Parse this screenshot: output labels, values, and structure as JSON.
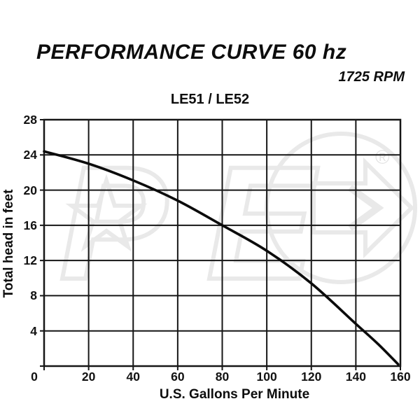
{
  "header": {
    "title": "PERFORMANCE CURVE 60 hz",
    "rpm": "1725 RPM"
  },
  "watermark": {
    "letter_p": "P",
    "letter_e": "E",
    "registered_mark": "®",
    "color": "#e9e9e9"
  },
  "chart_data": {
    "type": "line",
    "title": "LE51 / LE52",
    "xlabel": "U.S. Gallons Per Minute",
    "ylabel": "Total head in feet",
    "xlim": [
      0,
      160
    ],
    "ylim": [
      0,
      28
    ],
    "x_ticks": [
      0,
      20,
      40,
      60,
      80,
      100,
      120,
      140,
      160
    ],
    "y_ticks": [
      0,
      4,
      8,
      12,
      16,
      20,
      24,
      28
    ],
    "grid": true,
    "legend": "none",
    "line_color": "#0b0b0b",
    "grid_color": "#161616",
    "series": [
      {
        "name": "LE51 / LE52 head vs flow",
        "x": [
          0,
          20,
          40,
          60,
          80,
          100,
          120,
          140,
          150,
          159
        ],
        "y": [
          24.4,
          23.0,
          21.1,
          18.8,
          16.0,
          13.1,
          9.4,
          4.8,
          2.5,
          0.2
        ]
      }
    ]
  }
}
